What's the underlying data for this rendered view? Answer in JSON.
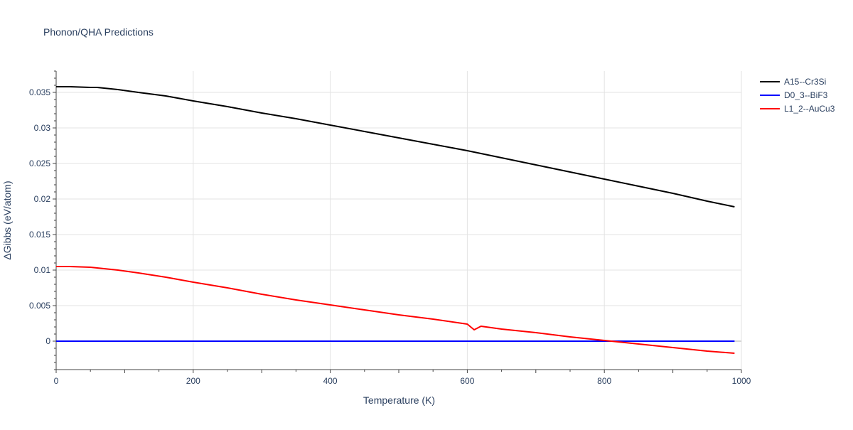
{
  "chart_data": {
    "type": "line",
    "title": "Phonon/QHA Predictions",
    "xlabel": "Temperature (K)",
    "ylabel": "ΔGibbs (eV/atom)",
    "xlim": [
      0,
      1000
    ],
    "ylim": [
      -0.004,
      0.038
    ],
    "grid": true,
    "legend_position": "top-right",
    "xticks": [
      0,
      200,
      400,
      600,
      800,
      1000
    ],
    "xtick_labels": [
      "0",
      "200",
      "400",
      "600",
      "800",
      "1000"
    ],
    "yticks": [
      0,
      0.005,
      0.01,
      0.015,
      0.02,
      0.025,
      0.03,
      0.035
    ],
    "ytick_labels": [
      "0",
      "0.005",
      "0.01",
      "0.015",
      "0.02",
      "0.025",
      "0.03",
      "0.035"
    ],
    "series": [
      {
        "name": "A15--Cr3Si",
        "color": "#000000",
        "x": [
          0,
          20,
          50,
          60,
          90,
          120,
          160,
          200,
          250,
          300,
          350,
          400,
          450,
          500,
          550,
          600,
          650,
          700,
          750,
          800,
          850,
          900,
          950,
          990
        ],
        "y": [
          0.0358,
          0.0358,
          0.0357,
          0.0357,
          0.0354,
          0.035,
          0.0345,
          0.0338,
          0.033,
          0.0321,
          0.0313,
          0.0304,
          0.0295,
          0.0286,
          0.0277,
          0.0268,
          0.0258,
          0.0248,
          0.0238,
          0.0228,
          0.0218,
          0.0208,
          0.0197,
          0.0189
        ]
      },
      {
        "name": "D0_3--BiF3",
        "color": "#0000ff",
        "x": [
          0,
          990
        ],
        "y": [
          0.0,
          0.0
        ]
      },
      {
        "name": "L1_2--AuCu3",
        "color": "#ff0000",
        "x": [
          0,
          20,
          50,
          90,
          120,
          160,
          200,
          250,
          300,
          350,
          400,
          450,
          500,
          550,
          600,
          610,
          620,
          650,
          700,
          750,
          800,
          850,
          900,
          950,
          990
        ],
        "y": [
          0.0105,
          0.0105,
          0.0104,
          0.01,
          0.0096,
          0.009,
          0.0083,
          0.0075,
          0.0066,
          0.0058,
          0.0051,
          0.0044,
          0.0037,
          0.0031,
          0.0024,
          0.0016,
          0.0021,
          0.0017,
          0.0012,
          0.0006,
          0.0001,
          -0.0004,
          -0.0009,
          -0.0014,
          -0.0017
        ]
      }
    ]
  }
}
